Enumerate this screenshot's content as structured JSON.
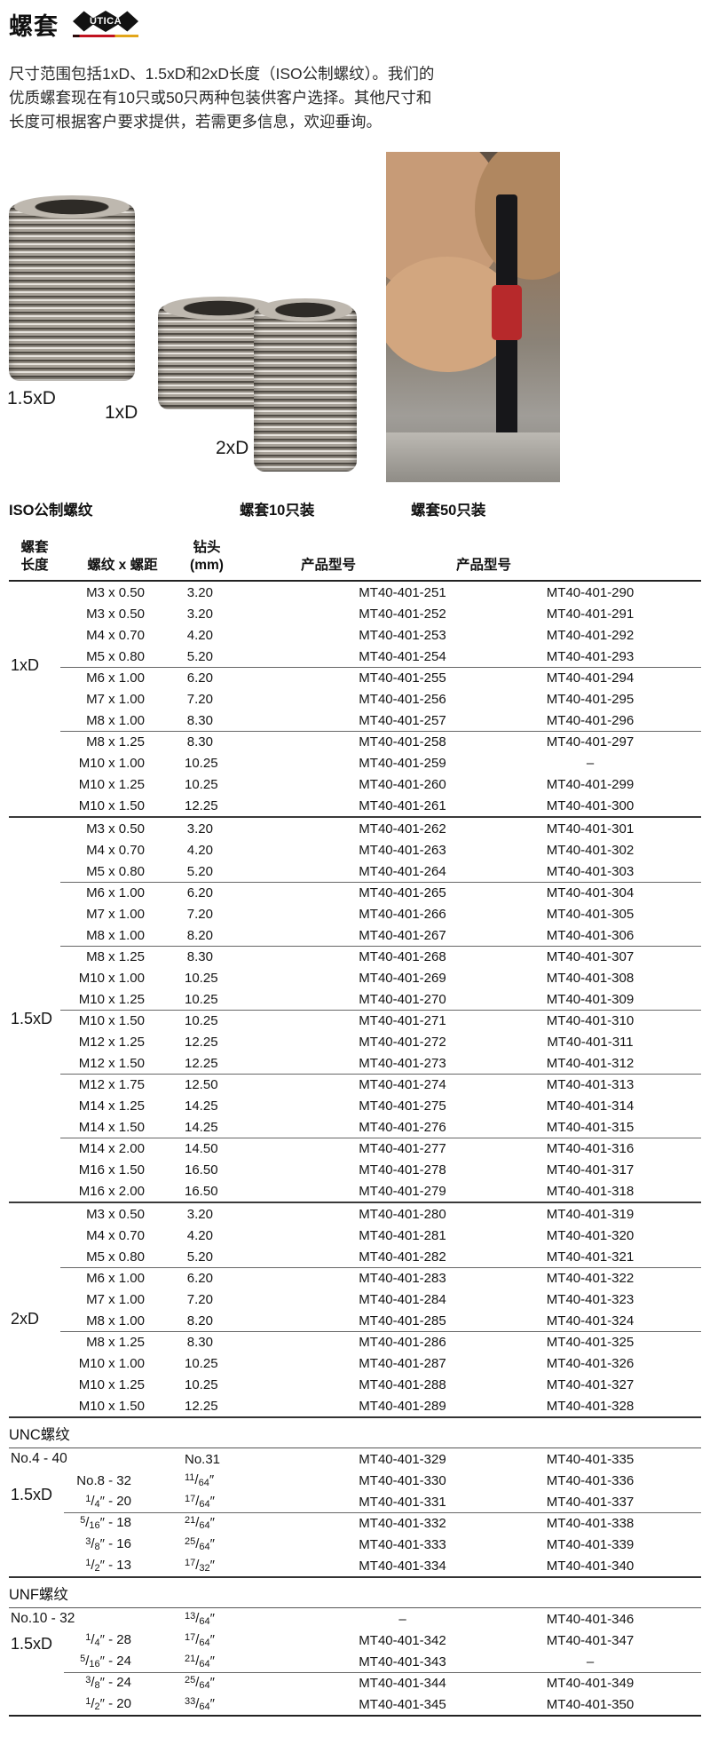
{
  "header": {
    "title": "螺套",
    "logo_text": "UTICA"
  },
  "intro": "尺寸范围包括1xD、1.5xD和2xD长度（ISO公制螺纹）。我们的\n优质螺套现在有10只或50只两种包装供客户选择。其他尺寸和\n长度可根据客户要求提供，若需更多信息，欢迎垂询。",
  "figures": {
    "label_15": "1.5xD",
    "label_1": "1xD",
    "label_2": "2xD"
  },
  "table": {
    "head": {
      "iso": "ISO公制螺纹",
      "pack10": "螺套10只装",
      "pack50": "螺套50只装",
      "col_length": "螺套\n长度",
      "col_thread": "螺纹 x 螺距",
      "col_drill": "钻头\n(mm)",
      "col_model10": "产品型号",
      "col_model50": "产品型号"
    },
    "iso_sections": [
      {
        "length": "1xD",
        "groups": [
          [
            {
              "thread": "M3 x 0.50",
              "drill": "3.20",
              "m10": "MT40-401-251",
              "m50": "MT40-401-290"
            },
            {
              "thread": "M3 x 0.50",
              "drill": "3.20",
              "m10": "MT40-401-252",
              "m50": "MT40-401-291"
            },
            {
              "thread": "M4 x 0.70",
              "drill": "4.20",
              "m10": "MT40-401-253",
              "m50": "MT40-401-292"
            },
            {
              "thread": "M5 x 0.80",
              "drill": "5.20",
              "m10": "MT40-401-254",
              "m50": "MT40-401-293"
            }
          ],
          [
            {
              "thread": "M6 x 1.00",
              "drill": "6.20",
              "m10": "MT40-401-255",
              "m50": "MT40-401-294"
            },
            {
              "thread": "M7 x 1.00",
              "drill": "7.20",
              "m10": "MT40-401-256",
              "m50": "MT40-401-295"
            },
            {
              "thread": "M8 x 1.00",
              "drill": "8.30",
              "m10": "MT40-401-257",
              "m50": "MT40-401-296"
            }
          ],
          [
            {
              "thread": "M8 x 1.25",
              "drill": "8.30",
              "m10": "MT40-401-258",
              "m50": "MT40-401-297"
            },
            {
              "thread": "M10 x 1.00",
              "drill": "10.25",
              "m10": "MT40-401-259",
              "m50": "–"
            },
            {
              "thread": "M10 x 1.25",
              "drill": "10.25",
              "m10": "MT40-401-260",
              "m50": "MT40-401-299"
            },
            {
              "thread": "M10 x 1.50",
              "drill": "12.25",
              "m10": "MT40-401-261",
              "m50": "MT40-401-300"
            }
          ]
        ]
      },
      {
        "length": "1.5xD",
        "groups": [
          [
            {
              "thread": "M3 x 0.50",
              "drill": "3.20",
              "m10": "MT40-401-262",
              "m50": "MT40-401-301"
            },
            {
              "thread": "M4 x 0.70",
              "drill": "4.20",
              "m10": "MT40-401-263",
              "m50": "MT40-401-302"
            },
            {
              "thread": "M5 x 0.80",
              "drill": "5.20",
              "m10": "MT40-401-264",
              "m50": "MT40-401-303"
            }
          ],
          [
            {
              "thread": "M6 x 1.00",
              "drill": "6.20",
              "m10": "MT40-401-265",
              "m50": "MT40-401-304"
            },
            {
              "thread": "M7 x 1.00",
              "drill": "7.20",
              "m10": "MT40-401-266",
              "m50": "MT40-401-305"
            },
            {
              "thread": "M8 x 1.00",
              "drill": "8.20",
              "m10": "MT40-401-267",
              "m50": "MT40-401-306"
            }
          ],
          [
            {
              "thread": "M8 x 1.25",
              "drill": "8.30",
              "m10": "MT40-401-268",
              "m50": "MT40-401-307"
            },
            {
              "thread": "M10 x 1.00",
              "drill": "10.25",
              "m10": "MT40-401-269",
              "m50": "MT40-401-308"
            },
            {
              "thread": "M10 x 1.25",
              "drill": "10.25",
              "m10": "MT40-401-270",
              "m50": "MT40-401-309"
            }
          ],
          [
            {
              "thread": "M10 x 1.50",
              "drill": "10.25",
              "m10": "MT40-401-271",
              "m50": "MT40-401-310"
            },
            {
              "thread": "M12 x 1.25",
              "drill": "12.25",
              "m10": "MT40-401-272",
              "m50": "MT40-401-311"
            },
            {
              "thread": "M12 x 1.50",
              "drill": "12.25",
              "m10": "MT40-401-273",
              "m50": "MT40-401-312"
            }
          ],
          [
            {
              "thread": "M12 x 1.75",
              "drill": "12.50",
              "m10": "MT40-401-274",
              "m50": "MT40-401-313"
            },
            {
              "thread": "M14 x 1.25",
              "drill": "14.25",
              "m10": "MT40-401-275",
              "m50": "MT40-401-314"
            },
            {
              "thread": "M14 x 1.50",
              "drill": "14.25",
              "m10": "MT40-401-276",
              "m50": "MT40-401-315"
            }
          ],
          [
            {
              "thread": "M14 x 2.00",
              "drill": "14.50",
              "m10": "MT40-401-277",
              "m50": "MT40-401-316"
            },
            {
              "thread": "M16 x 1.50",
              "drill": "16.50",
              "m10": "MT40-401-278",
              "m50": "MT40-401-317"
            },
            {
              "thread": "M16 x 2.00",
              "drill": "16.50",
              "m10": "MT40-401-279",
              "m50": "MT40-401-318"
            }
          ]
        ]
      },
      {
        "length": "2xD",
        "groups": [
          [
            {
              "thread": "M3 x 0.50",
              "drill": "3.20",
              "m10": "MT40-401-280",
              "m50": "MT40-401-319"
            },
            {
              "thread": "M4 x 0.70",
              "drill": "4.20",
              "m10": "MT40-401-281",
              "m50": "MT40-401-320"
            },
            {
              "thread": "M5 x 0.80",
              "drill": "5.20",
              "m10": "MT40-401-282",
              "m50": "MT40-401-321"
            }
          ],
          [
            {
              "thread": "M6 x 1.00",
              "drill": "6.20",
              "m10": "MT40-401-283",
              "m50": "MT40-401-322"
            },
            {
              "thread": "M7 x 1.00",
              "drill": "7.20",
              "m10": "MT40-401-284",
              "m50": "MT40-401-323"
            },
            {
              "thread": "M8 x 1.00",
              "drill": "8.20",
              "m10": "MT40-401-285",
              "m50": "MT40-401-324"
            }
          ],
          [
            {
              "thread": "M8 x 1.25",
              "drill": "8.30",
              "m10": "MT40-401-286",
              "m50": "MT40-401-325"
            },
            {
              "thread": "M10 x 1.00",
              "drill": "10.25",
              "m10": "MT40-401-287",
              "m50": "MT40-401-326"
            },
            {
              "thread": "M10 x 1.25",
              "drill": "10.25",
              "m10": "MT40-401-288",
              "m50": "MT40-401-327"
            },
            {
              "thread": "M10 x 1.50",
              "drill": "12.25",
              "m10": "MT40-401-289",
              "m50": "MT40-401-328"
            }
          ]
        ]
      }
    ],
    "unc": {
      "header": "UNC螺纹",
      "length": "1.5xD",
      "groups": [
        [
          {
            "thread": "No.4 - 40",
            "drill": "No.31",
            "m10": "MT40-401-329",
            "m50": "MT40-401-335",
            "wide": true
          },
          {
            "thread": "No.8 - 32",
            "drill": "11/64″",
            "m10": "MT40-401-330",
            "m50": "MT40-401-336"
          },
          {
            "thread": "1/4″ - 20",
            "drill": "17/64″",
            "m10": "MT40-401-331",
            "m50": "MT40-401-337"
          }
        ],
        [
          {
            "thread": "5/16″ - 18",
            "drill": "21/64″",
            "m10": "MT40-401-332",
            "m50": "MT40-401-338"
          },
          {
            "thread": "3/8″ - 16",
            "drill": "25/64″",
            "m10": "MT40-401-333",
            "m50": "MT40-401-339"
          },
          {
            "thread": "1/2″ - 13",
            "drill": "17/32″",
            "m10": "MT40-401-334",
            "m50": "MT40-401-340"
          }
        ]
      ]
    },
    "unf": {
      "header": "UNF螺纹",
      "length": "1.5xD",
      "groups": [
        [
          {
            "thread": "No.10 - 32",
            "drill": "13/64″",
            "m10": "–",
            "m50": "MT40-401-346",
            "wide": true
          },
          {
            "thread": "1/4″ - 28",
            "drill": "17/64″",
            "m10": "MT40-401-342",
            "m50": "MT40-401-347"
          },
          {
            "thread": "5/16″ - 24",
            "drill": "21/64″",
            "m10": "MT40-401-343",
            "m50": "–"
          }
        ],
        [
          {
            "thread": "3/8″ - 24",
            "drill": "25/64″",
            "m10": "MT40-401-344",
            "m50": "MT40-401-349"
          },
          {
            "thread": "1/2″ - 20",
            "drill": "33/64″",
            "m10": "MT40-401-345",
            "m50": "MT40-401-350"
          }
        ]
      ]
    }
  }
}
